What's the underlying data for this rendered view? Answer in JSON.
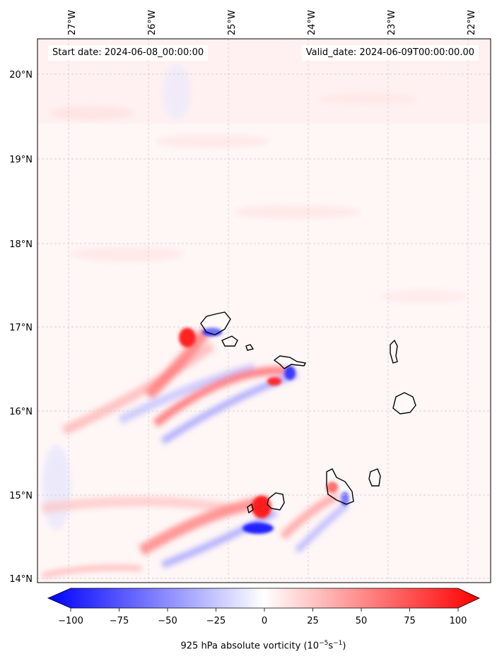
{
  "map": {
    "start_label": "Start date: 2024-06-08_00:00:00",
    "valid_label": "Valid_date: 2024-06-09T00:00:00.00",
    "lon_ticks": [
      "27°W",
      "26°W",
      "25°W",
      "24°W",
      "23°W",
      "22°W"
    ],
    "lat_ticks": [
      "20°N",
      "19°N",
      "18°N",
      "17°N",
      "16°N",
      "15°N",
      "14°N"
    ],
    "gridlines": true
  },
  "colorbar": {
    "ticks": [
      "−100",
      "−75",
      "−50",
      "−25",
      "0",
      "25",
      "50",
      "75",
      "100"
    ],
    "label": "925 hPa absolute vorticity (10",
    "label_exp1": "−5",
    "label_mid": "s",
    "label_exp2": "−1",
    "label_end": ")",
    "range": [
      -100,
      100
    ],
    "extend": "both",
    "colors": {
      "min": "#0000ff",
      "mid": "#ffffff",
      "max": "#ff0000"
    }
  }
}
